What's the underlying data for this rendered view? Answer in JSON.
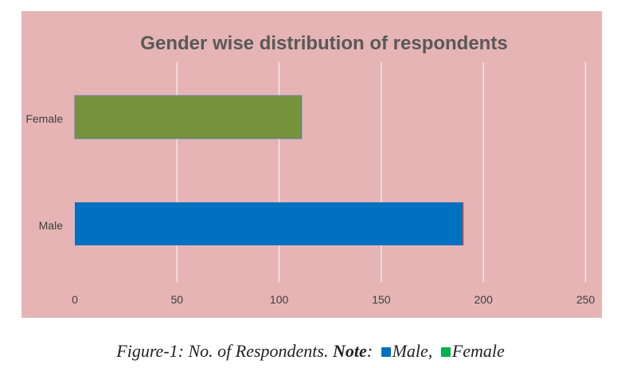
{
  "chart_data": {
    "type": "bar",
    "orientation": "horizontal",
    "title": "Gender wise distribution of respondents",
    "categories": [
      "Female",
      "Male"
    ],
    "values": [
      111,
      190
    ],
    "colors": [
      "#76923c",
      "#0070c0"
    ],
    "xlim": [
      0,
      250
    ],
    "xticks": [
      "0",
      "50",
      "100",
      "150",
      "200",
      "250"
    ],
    "xlabel": "",
    "ylabel": "",
    "grid": "vertical"
  },
  "caption": {
    "prefix": "Figure-1: No. of Respondents.",
    "note_label": "Note",
    "legend": [
      {
        "label": "Male",
        "color": "#0070c0"
      },
      {
        "label": "Female",
        "color": "#00b050"
      }
    ]
  }
}
